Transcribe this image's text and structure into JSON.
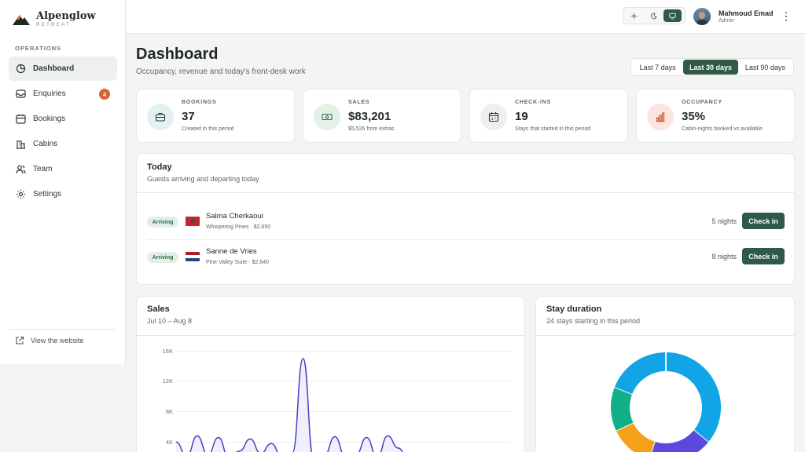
{
  "brand": {
    "name": "Alpenglow",
    "sub": "RETREAT"
  },
  "nav": {
    "section": "OPERATIONS",
    "items": [
      {
        "label": "Dashboard",
        "icon": "dashboard-icon",
        "active": true
      },
      {
        "label": "Enquiries",
        "icon": "inbox-icon",
        "badge": "4"
      },
      {
        "label": "Bookings",
        "icon": "calendar-icon"
      },
      {
        "label": "Cabins",
        "icon": "building-icon"
      },
      {
        "label": "Team",
        "icon": "users-icon"
      },
      {
        "label": "Settings",
        "icon": "gear-icon"
      }
    ],
    "view_site": "View the website"
  },
  "topbar": {
    "user": {
      "name": "Mahmoud Emad",
      "role": "Admin"
    },
    "theme_options": [
      "sun-icon",
      "moon-icon",
      "monitor-icon"
    ],
    "theme_selected": "monitor-icon"
  },
  "header": {
    "title": "Dashboard",
    "subtitle": "Occupancy, revenue and today's front-desk work",
    "ranges": [
      "Last 7 days",
      "Last 30 days",
      "Last 90 days"
    ],
    "selected_range": "Last 30 days"
  },
  "kpis": [
    {
      "label": "BOOKINGS",
      "value": "37",
      "sub": "Created in this period",
      "icon": "briefcase-icon",
      "color": "#e4f1f4"
    },
    {
      "label": "SALES",
      "value": "$83,201",
      "sub": "$5,526 from extras",
      "icon": "banknote-icon",
      "color": "#e3f1e6"
    },
    {
      "label": "CHECK-INS",
      "value": "19",
      "sub": "Stays that started in this period",
      "icon": "calendar-check-icon",
      "color": "#eef0ed"
    },
    {
      "label": "OCCUPANCY",
      "value": "35%",
      "sub": "Cabin-nights booked vs available",
      "icon": "bar-chart-icon",
      "color": "#fbe6dd"
    }
  ],
  "today": {
    "title": "Today",
    "subtitle": "Guests arriving and departing today",
    "rows": [
      {
        "status": "Arriving",
        "flag": "morocco-flag",
        "name": "Salma Cherkaoui",
        "meta": "Whispering Pines · $2,650",
        "nights": "5 nights",
        "action": "Check in"
      },
      {
        "status": "Arriving",
        "flag": "netherlands-flag",
        "name": "Sanne de Vries",
        "meta": "Pine Valley Suite · $2,640",
        "nights": "8 nights",
        "action": "Check in"
      }
    ]
  },
  "sales": {
    "title": "Sales",
    "subtitle": "Jul 10 – Aug 8"
  },
  "duration": {
    "title": "Stay duration",
    "subtitle": "24 stays starting in this period"
  },
  "chart_data": [
    {
      "type": "area",
      "title": "Sales",
      "ylim": [
        0,
        16000
      ],
      "yticks": [
        "16K",
        "12K",
        "8K",
        "4K"
      ],
      "grid": true,
      "series": [
        {
          "values": [
            4000,
            2100,
            4800,
            2300,
            4600,
            1900,
            2800,
            4400,
            2500,
            3800,
            2000,
            2600,
            15000,
            1700,
            2200,
            4700,
            2100,
            2300,
            4600,
            2000,
            4800,
            3200,
            1300,
            900,
            1000,
            1100,
            900
          ]
        }
      ],
      "colors": {
        "line": "#4b3fc4",
        "fill": "#eef0fb"
      }
    },
    {
      "type": "pie",
      "title": "Stay duration",
      "donut": true,
      "series": [
        {
          "values": [
            36,
            19,
            13,
            13,
            19
          ]
        }
      ],
      "colors": [
        "#11a5e8",
        "#5b49df",
        "#f4a119",
        "#12b08a",
        "#11a5e8"
      ]
    }
  ]
}
